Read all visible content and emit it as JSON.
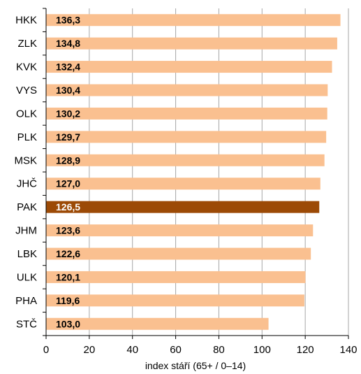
{
  "chart_data": {
    "type": "bar",
    "orientation": "horizontal",
    "categories": [
      "HKK",
      "ZLK",
      "KVK",
      "VYS",
      "OLK",
      "PLK",
      "MSK",
      "JHČ",
      "PAK",
      "JHM",
      "LBK",
      "ULK",
      "PHA",
      "STČ"
    ],
    "values": [
      136.3,
      134.8,
      132.4,
      130.4,
      130.2,
      129.7,
      128.9,
      127.0,
      126.5,
      123.6,
      122.6,
      120.1,
      119.6,
      103.0
    ],
    "value_labels": [
      "136,3",
      "134,8",
      "132,4",
      "130,4",
      "130,2",
      "129,7",
      "128,9",
      "127,0",
      "126,5",
      "123,6",
      "122,6",
      "120,1",
      "119,6",
      "103,0"
    ],
    "highlight_category": "PAK",
    "xlabel": "index stáří (65+ / 0–14)",
    "xlim": [
      0,
      140
    ],
    "xticks": [
      0,
      20,
      40,
      60,
      80,
      100,
      120,
      140
    ],
    "grid": "vertical",
    "legend": "none"
  },
  "colors": {
    "bar": "#FAC090",
    "highlight_bar": "#9C4A06",
    "label": "#000000",
    "highlight_label": "#ffffff",
    "grid": "#a6a6a6",
    "axis": "#000000"
  }
}
